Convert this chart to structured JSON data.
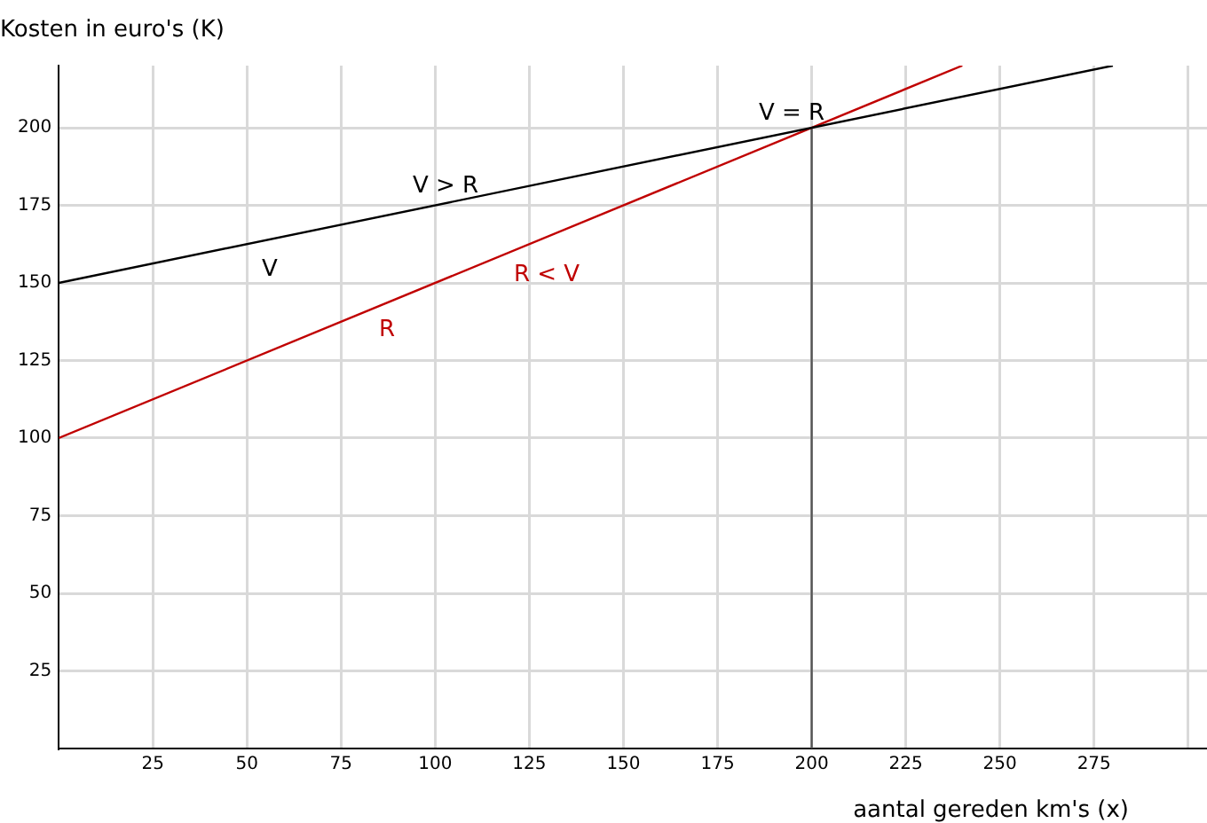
{
  "chart_data": {
    "type": "line",
    "xlabel": "aantal gereden km's (x)",
    "ylabel": "Kosten in euro's (K)",
    "series": [
      {
        "name": "V",
        "color": "#000000",
        "x": [
          0,
          280
        ],
        "values": [
          150,
          220
        ]
      },
      {
        "name": "R",
        "color": "#c00000",
        "x": [
          0,
          240
        ],
        "values": [
          100,
          220
        ]
      },
      {
        "color": "#555555",
        "x": [
          200,
          200
        ],
        "values": [
          0,
          200
        ]
      }
    ],
    "xlim": [
      0,
      305
    ],
    "xticks": [
      25,
      50,
      75,
      100,
      125,
      150,
      175,
      200,
      225,
      250,
      275,
      {
        "value": 300,
        "label": null
      }
    ],
    "ylim": [
      0,
      220
    ],
    "yticks": [
      25,
      50,
      75,
      100,
      125,
      150,
      175,
      200
    ],
    "grid": true,
    "legend": false,
    "marker": "none",
    "line_style": "solid",
    "annotations": [
      "V = R",
      "V > R",
      "R < V"
    ]
  }
}
